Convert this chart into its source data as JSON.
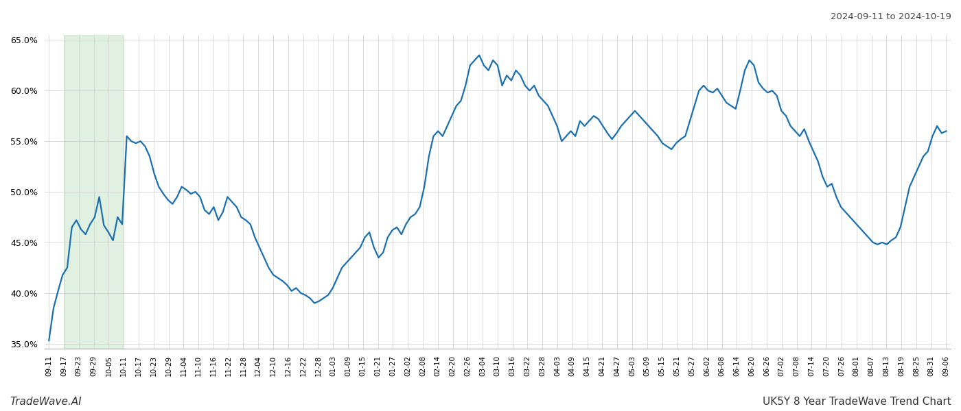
{
  "title_date": "2024-09-11 to 2024-10-19",
  "footer_left": "TradeWave.AI",
  "footer_right": "UK5Y 8 Year TradeWave Trend Chart",
  "y_min": 35.0,
  "y_max": 65.0,
  "y_ticks": [
    35.0,
    40.0,
    45.0,
    50.0,
    55.0,
    60.0,
    65.0
  ],
  "line_color": "#1a6faf",
  "line_width": 1.6,
  "shade_color": "#c8e6c9",
  "shade_alpha": 0.55,
  "background_color": "#ffffff",
  "grid_color": "#cccccc",
  "x_labels": [
    "09-11",
    "09-17",
    "09-23",
    "09-29",
    "10-05",
    "10-11",
    "10-17",
    "10-23",
    "10-29",
    "11-04",
    "11-10",
    "11-16",
    "11-22",
    "11-28",
    "12-04",
    "12-10",
    "12-16",
    "12-22",
    "12-28",
    "01-03",
    "01-09",
    "01-15",
    "01-21",
    "01-27",
    "02-02",
    "02-08",
    "02-14",
    "02-20",
    "02-26",
    "03-04",
    "03-10",
    "03-16",
    "03-22",
    "03-28",
    "04-03",
    "04-09",
    "04-15",
    "04-21",
    "04-27",
    "05-03",
    "05-09",
    "05-15",
    "05-21",
    "05-27",
    "06-02",
    "06-08",
    "06-14",
    "06-20",
    "06-26",
    "07-02",
    "07-08",
    "07-14",
    "07-20",
    "07-26",
    "08-01",
    "08-07",
    "08-13",
    "08-19",
    "08-25",
    "08-31",
    "09-06"
  ],
  "shade_start_label": "09-17",
  "shade_end_label": "10-11",
  "values": [
    35.3,
    38.5,
    40.2,
    41.8,
    42.5,
    46.5,
    47.2,
    46.3,
    45.8,
    46.8,
    47.5,
    49.5,
    46.7,
    46.0,
    45.2,
    47.5,
    46.8,
    55.5,
    55.0,
    54.8,
    55.0,
    54.5,
    53.5,
    51.8,
    50.5,
    49.8,
    49.2,
    48.8,
    49.5,
    50.5,
    50.2,
    49.8,
    50.0,
    49.5,
    48.2,
    47.8,
    48.5,
    47.2,
    48.0,
    49.5,
    49.0,
    48.5,
    47.5,
    47.2,
    46.8,
    45.5,
    44.5,
    43.5,
    42.5,
    41.8,
    41.5,
    41.2,
    40.8,
    40.2,
    40.5,
    40.0,
    39.8,
    39.5,
    39.0,
    39.2,
    39.5,
    39.8,
    40.5,
    41.5,
    42.5,
    43.0,
    43.5,
    44.0,
    44.5,
    45.5,
    46.0,
    44.5,
    43.5,
    44.0,
    45.5,
    46.2,
    46.5,
    45.8,
    46.8,
    47.5,
    47.8,
    48.5,
    50.5,
    53.5,
    55.5,
    56.0,
    55.5,
    56.5,
    57.5,
    58.5,
    59.0,
    60.5,
    62.5,
    63.0,
    63.5,
    62.5,
    62.0,
    63.0,
    62.5,
    60.5,
    61.5,
    61.0,
    62.0,
    61.5,
    60.5,
    60.0,
    60.5,
    59.5,
    59.0,
    58.5,
    57.5,
    56.5,
    55.0,
    55.5,
    56.0,
    55.5,
    57.0,
    56.5,
    57.0,
    57.5,
    57.2,
    56.5,
    55.8,
    55.2,
    55.8,
    56.5,
    57.0,
    57.5,
    58.0,
    57.5,
    57.0,
    56.5,
    56.0,
    55.5,
    54.8,
    54.5,
    54.2,
    54.8,
    55.2,
    55.5,
    57.0,
    58.5,
    60.0,
    60.5,
    60.0,
    59.8,
    60.2,
    59.5,
    58.8,
    58.5,
    58.2,
    60.0,
    62.0,
    63.0,
    62.5,
    60.8,
    60.2,
    59.8,
    60.0,
    59.5,
    58.0,
    57.5,
    56.5,
    56.0,
    55.5,
    56.2,
    55.0,
    54.0,
    53.0,
    51.5,
    50.5,
    50.8,
    49.5,
    48.5,
    48.0,
    47.5,
    47.0,
    46.5,
    46.0,
    45.5,
    45.0,
    44.8,
    45.0,
    44.8,
    45.2,
    45.5,
    46.5,
    48.5,
    50.5,
    51.5,
    52.5,
    53.5,
    54.0,
    55.5,
    56.5,
    55.8,
    56.0
  ]
}
